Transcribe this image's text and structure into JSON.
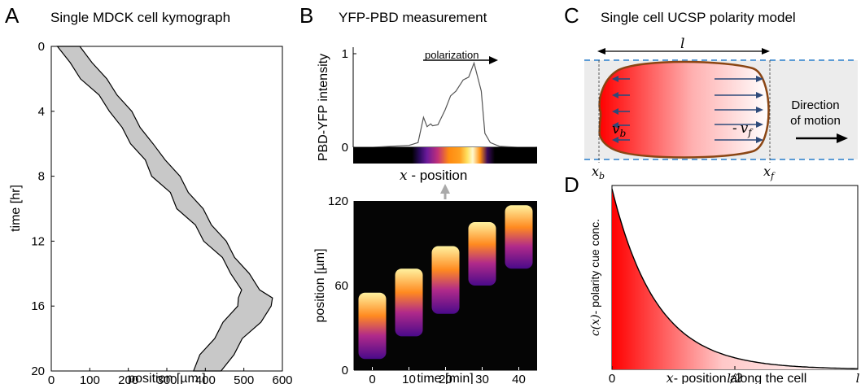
{
  "panels": {
    "A": {
      "letter": "A",
      "title": "Single MDCK cell kymograph",
      "xlabel": "position [µm ]",
      "ylabel": "time [hr]",
      "xticks": [
        "0",
        "100",
        "200",
        "300",
        "400",
        "500",
        "600"
      ],
      "yticks": [
        "0",
        "4",
        "8",
        "12",
        "16",
        "20"
      ]
    },
    "B": {
      "letter": "B",
      "title": "YFP-PBD measurement",
      "top_ylabel": "PBD-YFP intensity",
      "top_yticks": [
        "0",
        "1"
      ],
      "polarization_label": "polarization",
      "x_position_label": " - position",
      "x_symbol": "x",
      "bottom_ylabel": "position [µm]",
      "bottom_xlabel": "time [min]",
      "bottom_yticks": [
        "0",
        "60",
        "120"
      ],
      "bottom_xticks": [
        "0",
        "10",
        "20",
        "30",
        "40"
      ]
    },
    "C": {
      "letter": "C",
      "title": "Single cell UCSP polarity model",
      "length_symbol": "l",
      "vb_symbol": "v",
      "vb_sub": "b",
      "vf_symbol": "v",
      "vf_sub": "f",
      "vf_prefix": "-",
      "xb_symbol": "x",
      "xb_sub": "b",
      "xf_symbol": "x",
      "xf_sub": "f",
      "direction_line1": "Direction",
      "direction_line2": "of motion"
    },
    "D": {
      "letter": "D",
      "ylabel_main": "- polarity cue conc.",
      "ylabel_func": "c(x)",
      "xlabel_main": "- position along the cell",
      "xlabel_var": "x",
      "xticks": [
        "0",
        "l/2",
        "l"
      ]
    }
  },
  "chart_data": [
    {
      "type": "area",
      "panel": "A",
      "xlabel": "position [µm ]",
      "ylabel": "time [hr]",
      "xlim": [
        0,
        600
      ],
      "ylim": [
        20,
        0
      ],
      "left_edge": {
        "t": [
          0,
          1,
          2,
          3,
          4,
          5,
          6,
          7,
          8,
          9,
          10,
          11,
          12,
          13,
          14,
          15,
          15.5,
          16,
          17,
          18,
          19,
          20
        ],
        "x": [
          20,
          45,
          80,
          120,
          155,
          180,
          210,
          240,
          265,
          305,
          330,
          370,
          400,
          440,
          470,
          490,
          490,
          480,
          450,
          420,
          390,
          365
        ]
      },
      "right_edge": {
        "t": [
          0,
          1,
          2,
          3,
          4,
          5,
          6,
          7,
          8,
          9,
          10,
          11,
          12,
          13,
          14,
          15,
          15.5,
          16,
          17,
          18,
          19,
          20
        ],
        "x": [
          70,
          110,
          140,
          175,
          205,
          235,
          260,
          300,
          330,
          360,
          390,
          420,
          450,
          480,
          510,
          545,
          570,
          575,
          540,
          500,
          470,
          445
        ]
      },
      "fill": "#c8c8c8"
    },
    {
      "type": "line",
      "panel": "B",
      "ylabel": "PBD-YFP intensity",
      "xlabel": "x - position",
      "ylim": [
        0,
        1
      ],
      "x": [
        0,
        0.1,
        0.2,
        0.3,
        0.35,
        0.38,
        0.4,
        0.42,
        0.43,
        0.46,
        0.5,
        0.53,
        0.56,
        0.6,
        0.63,
        0.66,
        0.7,
        0.72,
        0.75,
        0.8,
        0.9,
        1
      ],
      "y": [
        0,
        0,
        0.01,
        0.02,
        0.05,
        0.32,
        0.22,
        0.25,
        0.23,
        0.24,
        0.4,
        0.55,
        0.6,
        0.72,
        0.75,
        0.9,
        0.6,
        0.15,
        0.05,
        0.01,
        0,
        0
      ],
      "color": "#555555"
    },
    {
      "type": "heatmap",
      "panel": "B",
      "xlabel": "time [min]",
      "ylabel": "position [µm]",
      "xlim": [
        -5,
        45
      ],
      "ylim": [
        0,
        120
      ],
      "cells": [
        {
          "t": 0,
          "low": 8,
          "high": 55
        },
        {
          "t": 10,
          "low": 24,
          "high": 72
        },
        {
          "t": 20,
          "low": 40,
          "high": 88
        },
        {
          "t": 30,
          "low": 60,
          "high": 105
        },
        {
          "t": 40,
          "low": 72,
          "high": 117
        }
      ]
    },
    {
      "type": "area",
      "panel": "D",
      "xlabel": "x - position along the cell",
      "ylabel": "c(x) - polarity cue conc.",
      "xticks": [
        "0",
        "l/2",
        "l"
      ],
      "function": "exponential decay",
      "decay_rate": 5.5,
      "fill_gradient": [
        "#ff0000",
        "#ffffff"
      ]
    }
  ]
}
